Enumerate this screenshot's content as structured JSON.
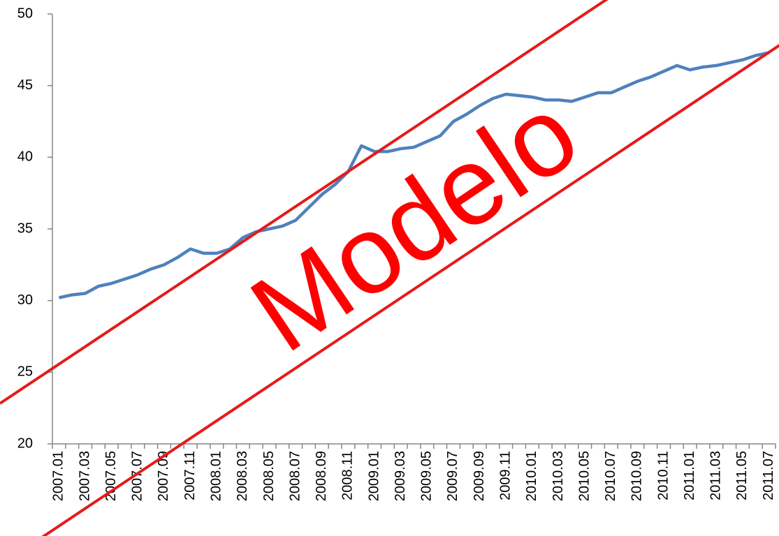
{
  "chart_data": {
    "type": "line",
    "categories": [
      "2007.01",
      null,
      "2007.03",
      null,
      "2007.05",
      null,
      "2007.07",
      null,
      "2007.09",
      null,
      "2007.11",
      null,
      "2008.01",
      null,
      "2008.03",
      null,
      "2008.05",
      null,
      "2008.07",
      null,
      "2008.09",
      null,
      "2008.11",
      null,
      "2009.01",
      null,
      "2009.03",
      null,
      "2009.05",
      null,
      "2009.07",
      null,
      "2009.09",
      null,
      "2009.11",
      null,
      "2010.01",
      null,
      "2010.03",
      null,
      "2010.05",
      null,
      "2010.07",
      null,
      "2010.09",
      null,
      "2010.11",
      null,
      "2011.01",
      null,
      "2011.03",
      null,
      "2011.05",
      null,
      "2011.07"
    ],
    "series": [
      {
        "color": "#4f81bd",
        "values": [
          30.2,
          30.4,
          30.5,
          31.0,
          31.2,
          31.5,
          31.8,
          32.2,
          32.5,
          33.0,
          33.6,
          33.3,
          33.3,
          33.6,
          34.4,
          34.8,
          35.0,
          35.2,
          35.6,
          36.5,
          37.4,
          38.1,
          39.0,
          40.8,
          40.4,
          40.4,
          40.6,
          40.7,
          41.1,
          41.5,
          42.5,
          43.0,
          43.6,
          44.1,
          44.4,
          44.3,
          44.2,
          44.0,
          44.0,
          43.9,
          44.2,
          44.5,
          44.5,
          44.9,
          45.3,
          45.6,
          46.0,
          46.4,
          46.1,
          46.3,
          46.4,
          46.6,
          46.8,
          47.1,
          47.3
        ]
      }
    ],
    "ylim": [
      20,
      50
    ],
    "yticks": [
      20,
      25,
      30,
      35,
      40,
      45,
      50
    ],
    "watermark": "Modelo"
  }
}
